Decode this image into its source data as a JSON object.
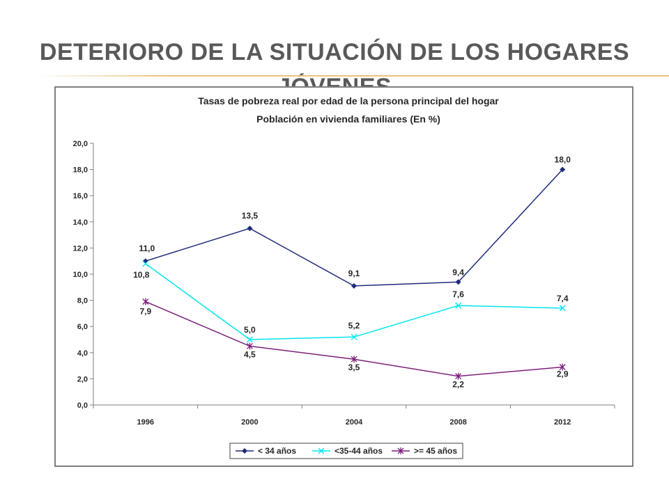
{
  "slide": {
    "title": "DETERIORO DE LA SITUACIÓN DE LOS HOGARES JÓVENES"
  },
  "chart_data": {
    "type": "line",
    "title": "Tasas de pobreza real por edad de la persona principal del hogar",
    "subtitle": "Población en vivienda familiares (En %)",
    "categories": [
      "1996",
      "2000",
      "2004",
      "2008",
      "2012"
    ],
    "ylim": [
      0,
      20
    ],
    "yticks": [
      "0,0",
      "2,0",
      "4,0",
      "6,0",
      "8,0",
      "10,0",
      "12,0",
      "14,0",
      "16,0",
      "18,0",
      "20,0"
    ],
    "grid": false,
    "legend_position": "bottom",
    "series": [
      {
        "name": "< 34 años",
        "color": "#1f2a7a",
        "marker": "diamond",
        "values": [
          11.0,
          13.5,
          9.1,
          9.4,
          18.0
        ],
        "labels": [
          "11,0",
          "13,5",
          "9,1",
          "9,4",
          "18,0"
        ]
      },
      {
        "name": "<35-44 años",
        "color": "#00e5ee",
        "marker": "x",
        "values": [
          10.8,
          5.0,
          5.2,
          7.6,
          7.4
        ],
        "labels": [
          "10,8",
          "5,0",
          "5,2",
          "7,6",
          "7,4"
        ]
      },
      {
        "name": ">= 45 años",
        "color": "#7b1f7a",
        "marker": "asterisk",
        "values": [
          7.9,
          4.5,
          3.5,
          2.2,
          2.9
        ],
        "labels": [
          "7,9",
          "4,5",
          "3,5",
          "2,2",
          "2,9"
        ]
      }
    ]
  }
}
